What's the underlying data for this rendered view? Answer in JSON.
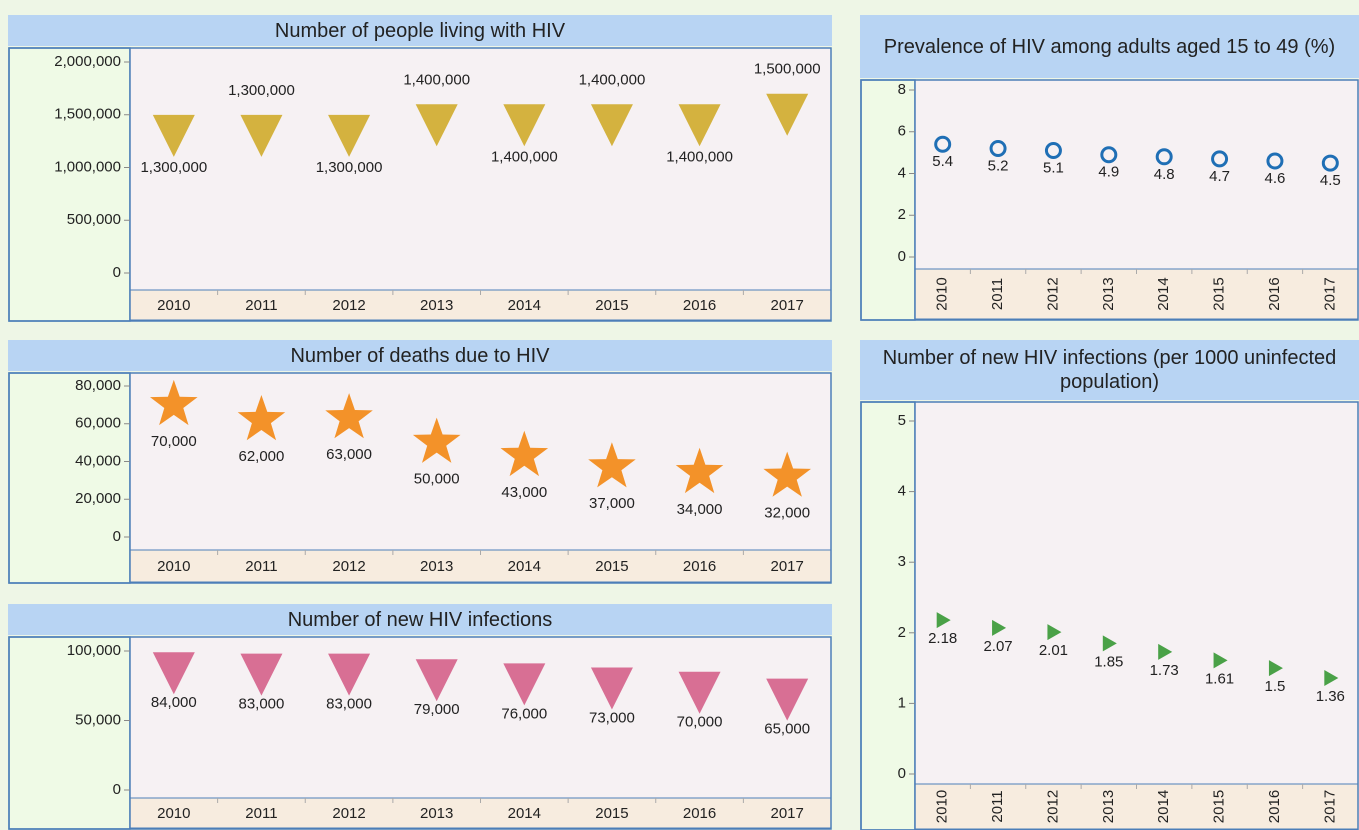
{
  "chart_data": [
    {
      "type": "point",
      "title": "Number of people living with HIV",
      "marker": "triangle-down",
      "color": "#d4b23f",
      "label_position": "alternate",
      "xtick_rotation": 0,
      "categories": [
        "2010",
        "2011",
        "2012",
        "2013",
        "2014",
        "2015",
        "2016",
        "2017"
      ],
      "values": [
        1300000,
        1300000,
        1300000,
        1400000,
        1400000,
        1400000,
        1400000,
        1500000
      ],
      "value_labels": [
        "1,300,000",
        "1,300,000",
        "1,300,000",
        "1,400,000",
        "1,400,000",
        "1,400,000",
        "1,400,000",
        "1,500,000"
      ],
      "ylim": [
        0,
        2000000
      ],
      "yticks": [
        0,
        {
          "value": 500000,
          "label": "500,000"
        },
        {
          "value": 1000000,
          "label": "1,000,000"
        },
        {
          "value": 1500000,
          "label": "1,500,000"
        },
        {
          "value": 2000000,
          "label": "2,000,000"
        }
      ]
    },
    {
      "type": "point",
      "title": "Number of deaths due to HIV",
      "marker": "star",
      "color": "#f39229",
      "label_position": "below",
      "xtick_rotation": 0,
      "categories": [
        "2010",
        "2011",
        "2012",
        "2013",
        "2014",
        "2015",
        "2016",
        "2017"
      ],
      "values": [
        70000,
        62000,
        63000,
        50000,
        43000,
        37000,
        34000,
        32000
      ],
      "value_labels": [
        "70,000",
        "62,000",
        "63,000",
        "50,000",
        "43,000",
        "37,000",
        "34,000",
        "32,000"
      ],
      "ylim": [
        0,
        80000
      ],
      "yticks": [
        0,
        {
          "value": 20000,
          "label": "20,000"
        },
        {
          "value": 40000,
          "label": "40,000"
        },
        {
          "value": 60000,
          "label": "60,000"
        },
        {
          "value": 80000,
          "label": "80,000"
        }
      ]
    },
    {
      "type": "point",
      "title": "Number of new HIV infections",
      "marker": "triangle-down",
      "color": "#d86f94",
      "label_position": "below",
      "xtick_rotation": 0,
      "categories": [
        "2010",
        "2011",
        "2012",
        "2013",
        "2014",
        "2015",
        "2016",
        "2017"
      ],
      "values": [
        84000,
        83000,
        83000,
        79000,
        76000,
        73000,
        70000,
        65000
      ],
      "value_labels": [
        "84,000",
        "83,000",
        "83,000",
        "79,000",
        "76,000",
        "73,000",
        "70,000",
        "65,000"
      ],
      "ylim": [
        0,
        100000
      ],
      "yticks": [
        0,
        {
          "value": 50000,
          "label": "50,000"
        },
        {
          "value": 100000,
          "label": "100,000"
        }
      ]
    },
    {
      "type": "point",
      "title": "Prevalence of HIV among adults aged 15 to 49 (%)",
      "marker": "circle",
      "color": "#1f6fb5",
      "label_position": "below",
      "xtick_rotation": -90,
      "categories": [
        "2010",
        "2011",
        "2012",
        "2013",
        "2014",
        "2015",
        "2016",
        "2017"
      ],
      "values": [
        5.4,
        5.2,
        5.1,
        4.9,
        4.8,
        4.7,
        4.6,
        4.5
      ],
      "ylim": [
        0,
        8
      ],
      "yticks": [
        0,
        2,
        4,
        6,
        8
      ]
    },
    {
      "type": "point",
      "title": "Number of new HIV infections (per 1000 uninfected population)",
      "marker": "triangle-right",
      "color": "#4aa147",
      "label_position": "below",
      "xtick_rotation": -90,
      "categories": [
        "2010",
        "2011",
        "2012",
        "2013",
        "2014",
        "2015",
        "2016",
        "2017"
      ],
      "values": [
        2.18,
        2.07,
        2.01,
        1.85,
        1.73,
        1.61,
        1.5,
        1.36
      ],
      "ylim": [
        0,
        5
      ],
      "yticks": [
        0,
        1,
        2,
        3,
        4,
        5
      ]
    }
  ]
}
